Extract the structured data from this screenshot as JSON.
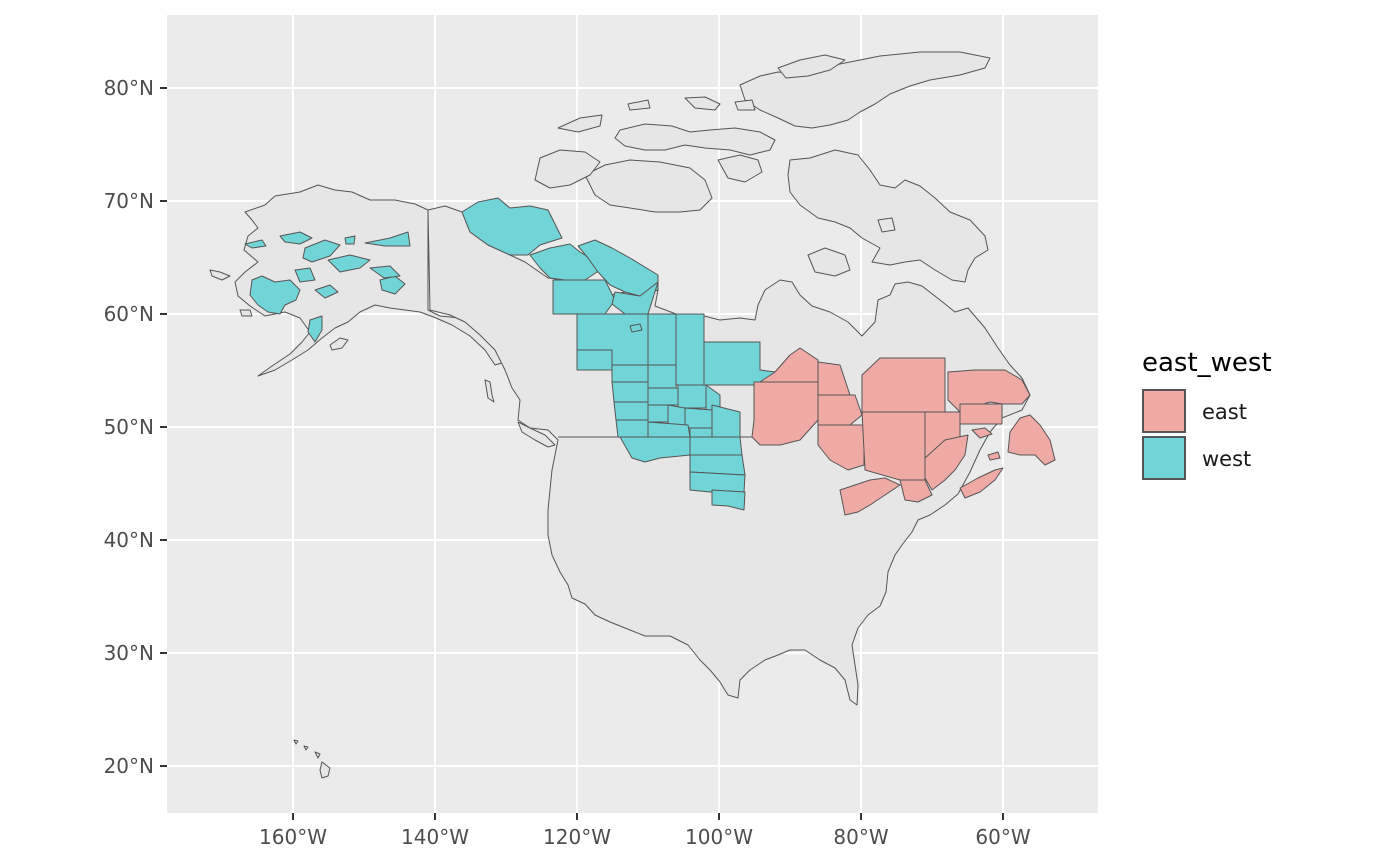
{
  "colors": {
    "panel": "#ebebeb",
    "grid": "#ffffff",
    "land": "#e6e6e6",
    "outline": "#555555",
    "east": "#f0aaa6",
    "west": "#71d4d6"
  },
  "axes": {
    "x_ticks": [
      "160°W",
      "140°W",
      "120°W",
      "100°W",
      "80°W",
      "60°W"
    ],
    "y_ticks": [
      "80°N",
      "70°N",
      "60°N",
      "50°N",
      "40°N",
      "30°N",
      "20°N"
    ]
  },
  "legend": {
    "title": "east_west",
    "items": [
      {
        "label": "east",
        "color": "#f0aaa6"
      },
      {
        "label": "west",
        "color": "#71d4d6"
      }
    ]
  }
}
